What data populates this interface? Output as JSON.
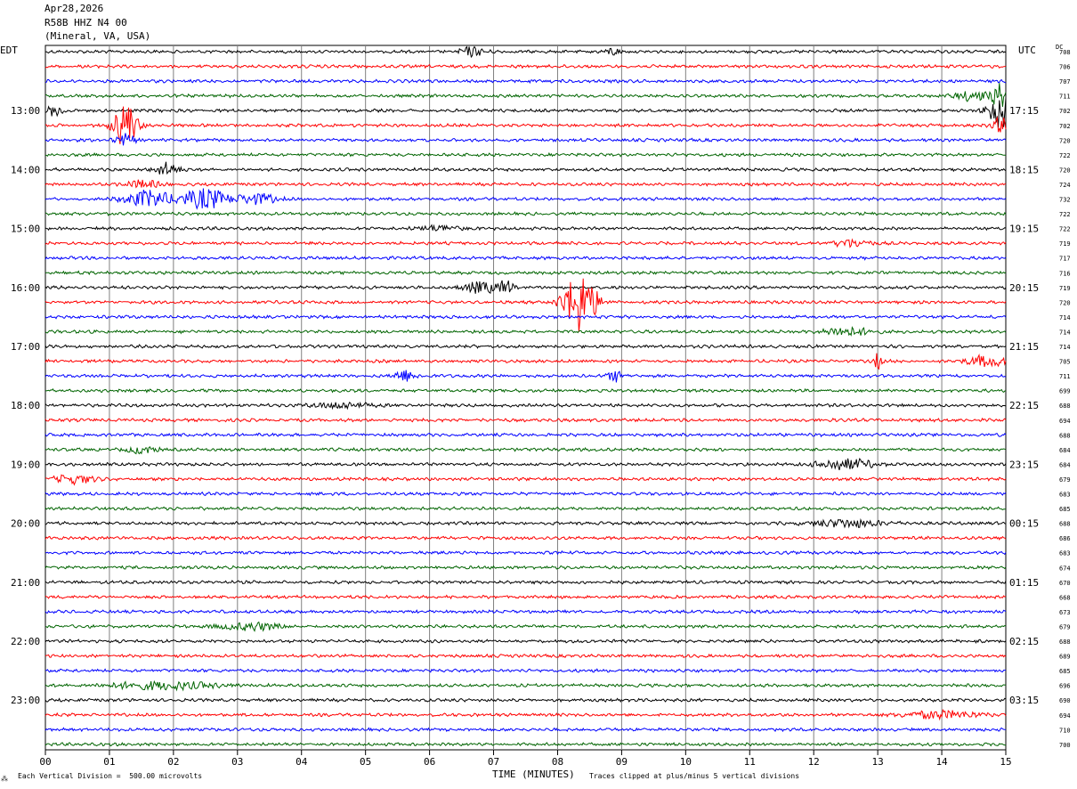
{
  "header": {
    "date": "Apr28,2026",
    "station": "R58B HHZ N4 00",
    "location": "(Mineral, VA, USA)"
  },
  "axis": {
    "left_tz": "EDT",
    "right_tz": "UTC",
    "dc_label": "DC",
    "xlabel": "TIME (MINUTES)",
    "footer_left": "Each Vertical Division =  500.00 microvolts",
    "footer_right": "Traces clipped at plus/minus 5 vertical divisions",
    "footer_mark": "⁂"
  },
  "chart_data": {
    "type": "line",
    "subtype": "helicorder",
    "xlim": [
      0,
      15
    ],
    "x_ticks": [
      "00",
      "01",
      "02",
      "03",
      "04",
      "05",
      "06",
      "07",
      "08",
      "09",
      "10",
      "11",
      "12",
      "13",
      "14",
      "15"
    ],
    "trace_count": 48,
    "trace_colors": [
      "#000000",
      "#ff0000",
      "#0000ff",
      "#006400"
    ],
    "left_hour_labels": [
      "13:00",
      "14:00",
      "15:00",
      "16:00",
      "17:00",
      "18:00",
      "19:00",
      "20:00",
      "21:00",
      "22:00",
      "23:00"
    ],
    "right_hour_labels": [
      "17:15",
      "18:15",
      "19:15",
      "20:15",
      "21:15",
      "22:15",
      "23:15",
      "00:15",
      "01:15",
      "02:15",
      "03:15"
    ],
    "hour_label_first_trace": 4,
    "dc_offsets": [
      708,
      706,
      707,
      711,
      702,
      702,
      720,
      722,
      720,
      724,
      732,
      722,
      722,
      719,
      717,
      716,
      719,
      720,
      714,
      714,
      714,
      705,
      711,
      699,
      688,
      694,
      688,
      684,
      684,
      679,
      683,
      685,
      688,
      686,
      683,
      674,
      670,
      668,
      673,
      679,
      688,
      689,
      685,
      696,
      690,
      694,
      710,
      700
    ],
    "events": [
      {
        "trace": 0,
        "x": 6.65,
        "width": 0.25,
        "amp": 5
      },
      {
        "trace": 0,
        "x": 8.85,
        "width": 0.15,
        "amp": 4
      },
      {
        "trace": 3,
        "x": 14.5,
        "width": 0.4,
        "amp": 5
      },
      {
        "trace": 3,
        "x": 14.9,
        "width": 0.15,
        "amp": 14
      },
      {
        "trace": 4,
        "x": 0.15,
        "width": 0.2,
        "amp": 6
      },
      {
        "trace": 4,
        "x": 14.9,
        "width": 0.25,
        "amp": 20
      },
      {
        "trace": 5,
        "x": 1.25,
        "width": 0.25,
        "amp": 26
      },
      {
        "trace": 5,
        "x": 14.95,
        "width": 0.2,
        "amp": 10
      },
      {
        "trace": 6,
        "x": 1.25,
        "width": 0.2,
        "amp": 6
      },
      {
        "trace": 8,
        "x": 1.9,
        "width": 0.25,
        "amp": 8
      },
      {
        "trace": 9,
        "x": 1.5,
        "width": 0.4,
        "amp": 4
      },
      {
        "trace": 10,
        "x": 1.6,
        "width": 0.5,
        "amp": 9
      },
      {
        "trace": 10,
        "x": 2.5,
        "width": 0.5,
        "amp": 11
      },
      {
        "trace": 10,
        "x": 3.3,
        "width": 0.4,
        "amp": 6
      },
      {
        "trace": 12,
        "x": 6.2,
        "width": 0.5,
        "amp": 3
      },
      {
        "trace": 13,
        "x": 12.6,
        "width": 0.4,
        "amp": 4
      },
      {
        "trace": 16,
        "x": 6.8,
        "width": 0.4,
        "amp": 6
      },
      {
        "trace": 16,
        "x": 7.2,
        "width": 0.15,
        "amp": 8
      },
      {
        "trace": 17,
        "x": 8.35,
        "width": 0.35,
        "amp": 34
      },
      {
        "trace": 19,
        "x": 12.5,
        "width": 0.5,
        "amp": 5
      },
      {
        "trace": 21,
        "x": 13.0,
        "width": 0.1,
        "amp": 8
      },
      {
        "trace": 21,
        "x": 14.7,
        "width": 0.4,
        "amp": 6
      },
      {
        "trace": 22,
        "x": 5.6,
        "width": 0.25,
        "amp": 6
      },
      {
        "trace": 22,
        "x": 8.9,
        "width": 0.15,
        "amp": 6
      },
      {
        "trace": 24,
        "x": 4.6,
        "width": 0.6,
        "amp": 3
      },
      {
        "trace": 27,
        "x": 1.5,
        "width": 0.3,
        "amp": 4
      },
      {
        "trace": 28,
        "x": 12.5,
        "width": 0.6,
        "amp": 6
      },
      {
        "trace": 29,
        "x": 0.45,
        "width": 0.4,
        "amp": 5
      },
      {
        "trace": 32,
        "x": 12.5,
        "width": 0.8,
        "amp": 4
      },
      {
        "trace": 39,
        "x": 3.2,
        "width": 0.7,
        "amp": 4
      },
      {
        "trace": 43,
        "x": 1.8,
        "width": 1.2,
        "amp": 4
      },
      {
        "trace": 45,
        "x": 14.0,
        "width": 0.8,
        "amp": 4
      }
    ]
  }
}
